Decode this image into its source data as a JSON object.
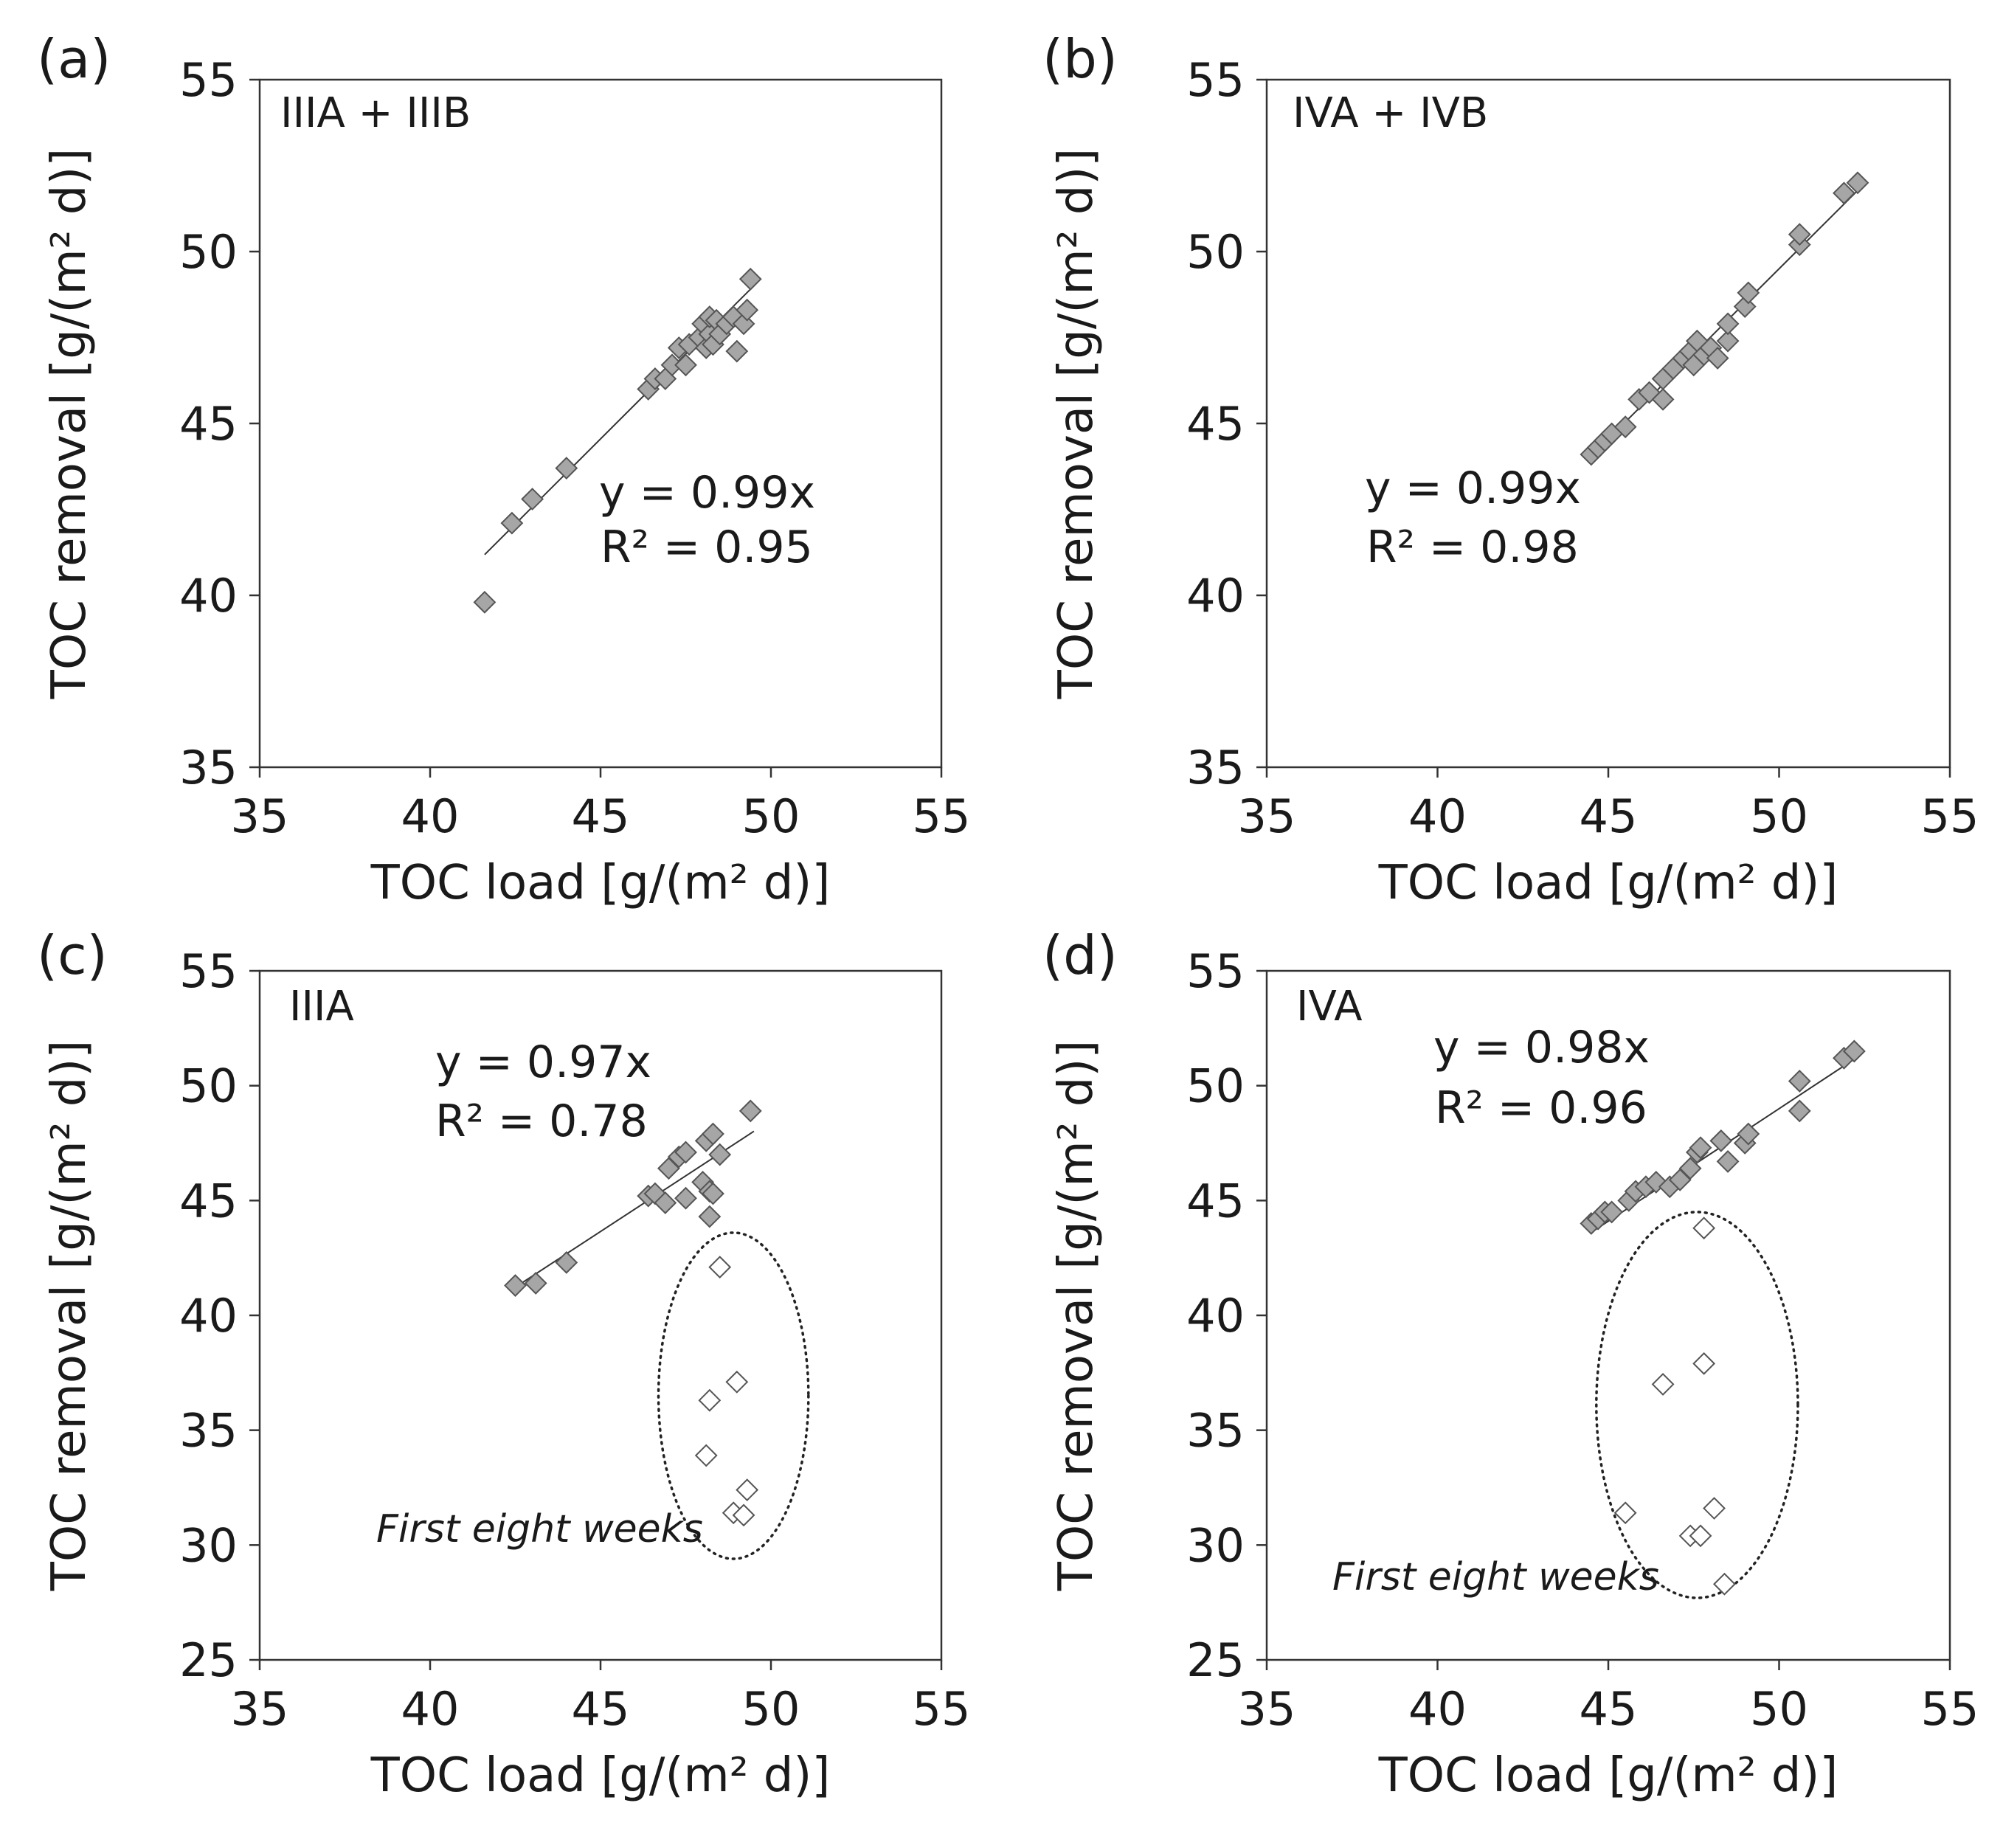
{
  "chart_data": [
    {
      "type": "scatter",
      "panel": "(a)",
      "group": "IIIA + IIIB",
      "xlabel": "TOC load [g/(m² d)]",
      "ylabel": "TOC removal [g/(m² d)]",
      "xlim": [
        35,
        55
      ],
      "ylim": [
        35,
        55
      ],
      "xticks": [
        35,
        40,
        45,
        50,
        55
      ],
      "yticks": [
        35,
        40,
        45,
        50,
        55
      ],
      "equation": "y = 0.99x",
      "r2": "R² = 0.95",
      "trendline": {
        "slope": 0.99,
        "x": [
          41.6,
          49.5
        ]
      },
      "series": [
        {
          "marker": "filled-diamond",
          "points": [
            [
              41.6,
              39.8
            ],
            [
              42.4,
              42.1
            ],
            [
              43.0,
              42.8
            ],
            [
              44.0,
              43.7
            ],
            [
              46.4,
              46.0
            ],
            [
              46.6,
              46.3
            ],
            [
              46.9,
              46.3
            ],
            [
              47.1,
              46.7
            ],
            [
              47.3,
              47.2
            ],
            [
              47.5,
              46.7
            ],
            [
              47.6,
              47.3
            ],
            [
              47.9,
              47.5
            ],
            [
              48.0,
              47.9
            ],
            [
              48.1,
              47.2
            ],
            [
              48.2,
              47.6
            ],
            [
              48.2,
              48.1
            ],
            [
              48.3,
              47.3
            ],
            [
              48.4,
              48.0
            ],
            [
              48.5,
              47.6
            ],
            [
              48.7,
              47.9
            ],
            [
              48.9,
              48.1
            ],
            [
              49.0,
              47.1
            ],
            [
              49.2,
              47.9
            ],
            [
              49.3,
              48.3
            ],
            [
              49.4,
              49.2
            ]
          ]
        }
      ]
    },
    {
      "type": "scatter",
      "panel": "(b)",
      "group": "IVA + IVB",
      "xlabel": "TOC load [g/(m² d)]",
      "ylabel": "TOC removal [g/(m² d)]",
      "xlim": [
        35,
        55
      ],
      "ylim": [
        35,
        55
      ],
      "xticks": [
        35,
        40,
        45,
        50,
        55
      ],
      "yticks": [
        35,
        40,
        45,
        50,
        55
      ],
      "equation": "y = 0.99x",
      "r2": "R² = 0.98",
      "trendline": {
        "slope": 0.99,
        "x": [
          44.5,
          52.3
        ]
      },
      "series": [
        {
          "marker": "filled-diamond",
          "points": [
            [
              44.5,
              44.1
            ],
            [
              44.7,
              44.3
            ],
            [
              44.9,
              44.5
            ],
            [
              45.1,
              44.7
            ],
            [
              45.5,
              44.9
            ],
            [
              45.9,
              45.7
            ],
            [
              46.2,
              45.9
            ],
            [
              46.6,
              45.7
            ],
            [
              46.6,
              46.3
            ],
            [
              46.9,
              46.6
            ],
            [
              47.2,
              46.9
            ],
            [
              47.4,
              47.1
            ],
            [
              47.5,
              46.7
            ],
            [
              47.6,
              47.4
            ],
            [
              47.8,
              47.0
            ],
            [
              48.0,
              47.2
            ],
            [
              48.2,
              46.9
            ],
            [
              48.5,
              47.4
            ],
            [
              48.5,
              47.9
            ],
            [
              49.0,
              48.4
            ],
            [
              49.1,
              48.8
            ],
            [
              50.6,
              50.2
            ],
            [
              50.6,
              50.5
            ],
            [
              51.9,
              51.7
            ],
            [
              52.3,
              52.0
            ]
          ]
        }
      ]
    },
    {
      "type": "scatter",
      "panel": "(c)",
      "group": "IIIA",
      "xlabel": "TOC load [g/(m² d)]",
      "ylabel": "TOC removal [g/(m² d)]",
      "xlim": [
        35,
        55
      ],
      "ylim": [
        25,
        55
      ],
      "xticks": [
        35,
        40,
        45,
        50,
        55
      ],
      "yticks": [
        25,
        30,
        35,
        40,
        45,
        50,
        55
      ],
      "equation": "y = 0.97x",
      "r2": "R² = 0.78",
      "trendline": {
        "slope": 0.97,
        "x": [
          42.4,
          49.5
        ]
      },
      "annotation": "First eight weeks",
      "ellipse": {
        "cx": 48.9,
        "cy": 36.5,
        "rx": 2.2,
        "ry": 7.1
      },
      "series": [
        {
          "marker": "filled-diamond",
          "points": [
            [
              42.5,
              41.3
            ],
            [
              43.1,
              41.4
            ],
            [
              44.0,
              42.3
            ],
            [
              46.4,
              45.2
            ],
            [
              46.6,
              45.3
            ],
            [
              46.9,
              44.9
            ],
            [
              47.0,
              46.4
            ],
            [
              47.3,
              46.9
            ],
            [
              47.5,
              45.1
            ],
            [
              47.5,
              47.1
            ],
            [
              48.0,
              45.8
            ],
            [
              48.1,
              47.6
            ],
            [
              48.2,
              45.4
            ],
            [
              48.3,
              47.9
            ],
            [
              48.3,
              45.3
            ],
            [
              48.2,
              44.3
            ],
            [
              48.5,
              47.0
            ],
            [
              49.4,
              48.9
            ]
          ]
        },
        {
          "name": "First eight weeks",
          "marker": "open-diamond",
          "points": [
            [
              48.5,
              42.1
            ],
            [
              49.0,
              37.1
            ],
            [
              48.2,
              36.3
            ],
            [
              48.1,
              33.9
            ],
            [
              49.3,
              32.4
            ],
            [
              48.9,
              31.4
            ],
            [
              49.2,
              31.3
            ]
          ]
        }
      ]
    },
    {
      "type": "scatter",
      "panel": "(d)",
      "group": "IVA",
      "xlabel": "TOC load [g/(m² d)]",
      "ylabel": "TOC removal [g/(m² d)]",
      "xlim": [
        35,
        55
      ],
      "ylim": [
        25,
        55
      ],
      "xticks": [
        35,
        40,
        45,
        50,
        55
      ],
      "yticks": [
        25,
        30,
        35,
        40,
        45,
        50,
        55
      ],
      "equation": "y = 0.98x",
      "r2": "R² = 0.96",
      "trendline": {
        "slope": 0.98,
        "x": [
          44.5,
          52.3
        ]
      },
      "annotation": "First eight weeks",
      "ellipse": {
        "cx": 47.6,
        "cy": 36.1,
        "rx": 2.95,
        "ry": 8.4
      },
      "series": [
        {
          "marker": "filled-diamond",
          "points": [
            [
              44.5,
              44.0
            ],
            [
              44.7,
              44.2
            ],
            [
              44.9,
              44.5
            ],
            [
              45.1,
              44.5
            ],
            [
              45.6,
              45.0
            ],
            [
              45.8,
              45.4
            ],
            [
              46.1,
              45.6
            ],
            [
              46.4,
              45.8
            ],
            [
              46.8,
              45.6
            ],
            [
              47.1,
              45.9
            ],
            [
              47.4,
              46.4
            ],
            [
              47.6,
              47.1
            ],
            [
              47.7,
              47.3
            ],
            [
              48.3,
              47.6
            ],
            [
              48.5,
              46.7
            ],
            [
              49.0,
              47.5
            ],
            [
              49.1,
              47.9
            ],
            [
              50.6,
              48.9
            ],
            [
              50.6,
              50.2
            ],
            [
              51.9,
              51.2
            ],
            [
              52.2,
              51.5
            ]
          ]
        },
        {
          "name": "First eight weeks",
          "marker": "open-diamond",
          "points": [
            [
              47.8,
              43.8
            ],
            [
              47.8,
              37.9
            ],
            [
              46.6,
              37.0
            ],
            [
              48.1,
              31.6
            ],
            [
              45.5,
              31.4
            ],
            [
              47.4,
              30.4
            ],
            [
              47.7,
              30.4
            ],
            [
              48.4,
              28.3
            ]
          ]
        }
      ]
    }
  ]
}
